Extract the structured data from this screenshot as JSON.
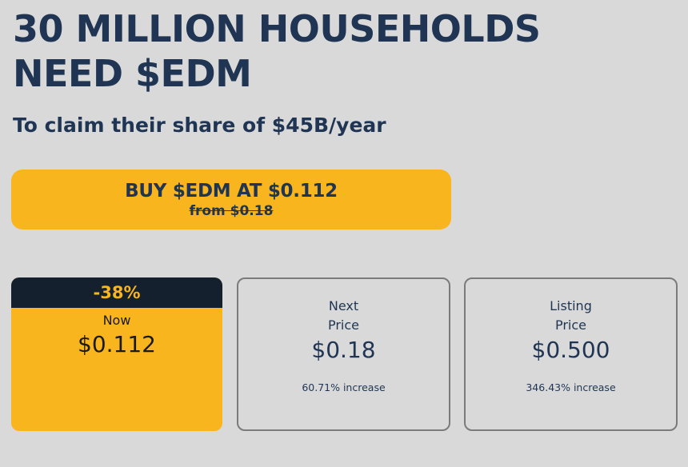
{
  "headline": {
    "line1": "30 MILLION HOUSEHOLDS",
    "line2": "NEED $EDM"
  },
  "subheadline": "To claim their share of $45B/year",
  "buy_button": {
    "label": "BUY $EDM AT $0.112",
    "old_price": "from $0.18"
  },
  "cards": {
    "now": {
      "discount": "-38%",
      "label": "Now",
      "price": "$0.112"
    },
    "next": {
      "label_line1": "Next",
      "label_line2": "Price",
      "price": "$0.18",
      "increase": "60.71% increase"
    },
    "listing": {
      "label_line1": "Listing",
      "label_line2": "Price",
      "price": "$0.500",
      "increase": "346.43% increase"
    }
  },
  "colors": {
    "background": "#d9d9d9",
    "navy": "#1f3553",
    "accent_yellow": "#f9b51d",
    "dark_band": "#14202e",
    "card_border": "#7b7b7b"
  }
}
